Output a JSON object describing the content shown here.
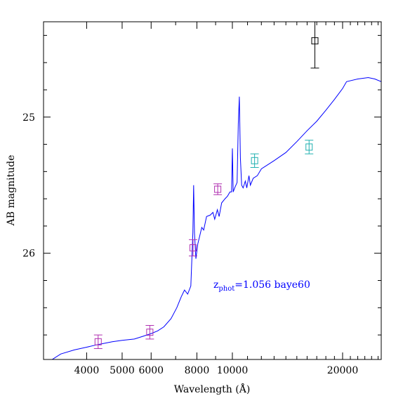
{
  "chart_data": {
    "type": "scatter",
    "title": "",
    "xlabel": "Wavelength (Å)",
    "ylabel": "AB magnitude",
    "x_scale": "log",
    "xlim": [
      3050,
      25500
    ],
    "ylim": [
      26.78,
      24.3
    ],
    "x_ticks": [
      {
        "value": 4000,
        "label": "4000"
      },
      {
        "value": 5000,
        "label": "5000"
      },
      {
        "value": 6000,
        "label": "6000"
      },
      {
        "value": 8000,
        "label": "8000"
      },
      {
        "value": 10000,
        "label": "10000"
      },
      {
        "value": 20000,
        "label": "20000"
      }
    ],
    "y_ticks": [
      {
        "value": 25,
        "label": "25"
      },
      {
        "value": 26,
        "label": "26"
      }
    ],
    "annotation": {
      "z_prefix": "z",
      "z_subscript": "phot",
      "text": "=1.056 baye60",
      "color": "#0000ff"
    },
    "series": [
      {
        "kind": "line",
        "color": "#0000ff",
        "points": [
          [
            3220,
            26.78
          ],
          [
            3400,
            26.74
          ],
          [
            3700,
            26.71
          ],
          [
            4000,
            26.69
          ],
          [
            4300,
            26.67
          ],
          [
            4700,
            26.65
          ],
          [
            5000,
            26.64
          ],
          [
            5400,
            26.63
          ],
          [
            5700,
            26.61
          ],
          [
            6000,
            26.59
          ],
          [
            6250,
            26.57
          ],
          [
            6500,
            26.54
          ],
          [
            6800,
            26.48
          ],
          [
            7050,
            26.4
          ],
          [
            7250,
            26.32
          ],
          [
            7400,
            26.27
          ],
          [
            7550,
            26.3
          ],
          [
            7700,
            26.24
          ],
          [
            7800,
            25.85
          ],
          [
            7840,
            25.5
          ],
          [
            7880,
            25.85
          ],
          [
            7950,
            26.04
          ],
          [
            8050,
            25.93
          ],
          [
            8150,
            25.87
          ],
          [
            8250,
            25.81
          ],
          [
            8350,
            25.83
          ],
          [
            8500,
            25.73
          ],
          [
            8700,
            25.72
          ],
          [
            8850,
            25.7
          ],
          [
            8950,
            25.75
          ],
          [
            9100,
            25.68
          ],
          [
            9200,
            25.73
          ],
          [
            9350,
            25.63
          ],
          [
            9550,
            25.6
          ],
          [
            9700,
            25.58
          ],
          [
            9850,
            25.55
          ],
          [
            9950,
            25.55
          ],
          [
            10000,
            25.23
          ],
          [
            10050,
            25.55
          ],
          [
            10150,
            25.52
          ],
          [
            10300,
            25.48
          ],
          [
            10380,
            25.05
          ],
          [
            10450,
            24.85
          ],
          [
            10520,
            25.3
          ],
          [
            10600,
            25.5
          ],
          [
            10700,
            25.52
          ],
          [
            10850,
            25.47
          ],
          [
            10950,
            25.52
          ],
          [
            11100,
            25.43
          ],
          [
            11200,
            25.5
          ],
          [
            11400,
            25.45
          ],
          [
            11700,
            25.43
          ],
          [
            12000,
            25.38
          ],
          [
            12500,
            25.35
          ],
          [
            13000,
            25.32
          ],
          [
            14000,
            25.26
          ],
          [
            15000,
            25.18
          ],
          [
            16000,
            25.1
          ],
          [
            17000,
            25.03
          ],
          [
            18000,
            24.95
          ],
          [
            19000,
            24.87
          ],
          [
            20000,
            24.79
          ],
          [
            20500,
            24.74
          ],
          [
            22000,
            24.72
          ],
          [
            23500,
            24.71
          ],
          [
            24500,
            24.72
          ],
          [
            25500,
            24.74
          ]
        ]
      },
      {
        "kind": "errorbar",
        "name": "",
        "color": "#b030b0",
        "points": [
          {
            "x": 4300,
            "y": 26.65,
            "err": 0.05
          },
          {
            "x": 5950,
            "y": 26.58,
            "err": 0.05
          },
          {
            "x": 7810,
            "y": 25.96,
            "err": 0.06
          },
          {
            "x": 9120,
            "y": 25.53,
            "err": 0.04
          }
        ]
      },
      {
        "kind": "errorbar",
        "name": "",
        "color": "#20b0b0",
        "points": [
          {
            "x": 11500,
            "y": 25.32,
            "err": 0.05
          },
          {
            "x": 16200,
            "y": 25.22,
            "err": 0.05
          }
        ]
      },
      {
        "kind": "errorbar",
        "name": "",
        "color": "#000000",
        "points": [
          {
            "x": 16800,
            "y": 24.44,
            "err": 0.2
          }
        ]
      }
    ]
  }
}
